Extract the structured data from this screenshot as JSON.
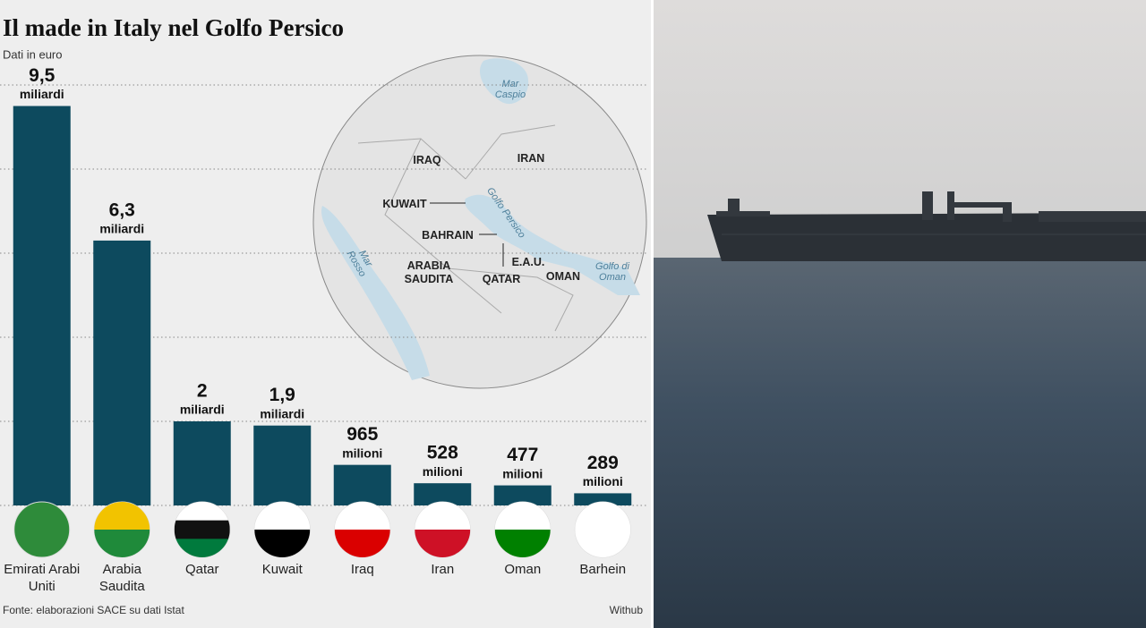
{
  "chart_data": {
    "type": "bar",
    "title": "Il made in Italy nel Golfo Persico",
    "subtitle": "Dati in euro",
    "categories": [
      "Emirati Arabi Uniti",
      "Arabia Saudita",
      "Qatar",
      "Kuwait",
      "Iraq",
      "Iran",
      "Oman",
      "Barhein"
    ],
    "values": [
      9500000000,
      6300000000,
      2000000000,
      1900000000,
      965000000,
      528000000,
      477000000,
      289000000
    ],
    "value_labels": [
      "9,5",
      "6,3",
      "2",
      "1,9",
      "965",
      "528",
      "477",
      "289"
    ],
    "value_units": [
      "miliardi",
      "miliardi",
      "miliardi",
      "miliardi",
      "milioni",
      "milioni",
      "milioni",
      "milioni"
    ],
    "color": "#0d4a5e",
    "ylim": [
      0,
      10000000000
    ],
    "yticks": [
      0,
      2000000000,
      4000000000,
      6000000000,
      8000000000,
      10000000000
    ],
    "grid": true,
    "map_labels": [
      "Mar Caspio",
      "IRAQ",
      "IRAN",
      "KUWAIT",
      "Golfo Persico",
      "BAHRAIN",
      "E.A.U.",
      "ARABIA SAUDITA",
      "QATAR",
      "OMAN",
      "Golfo di Oman",
      "Mar Rosso"
    ],
    "source": "Fonte: elaborazioni SACE su dati Istat",
    "credit": "Withub"
  }
}
